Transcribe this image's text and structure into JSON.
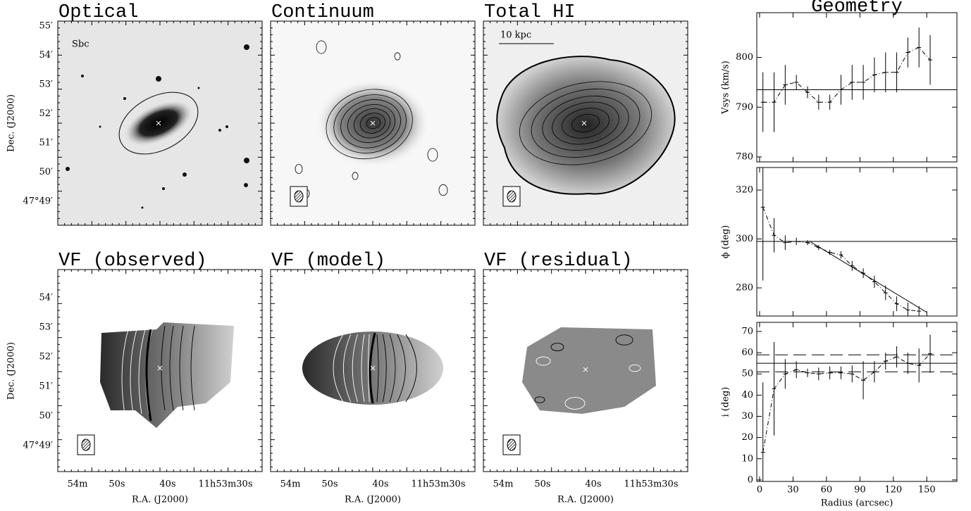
{
  "image_panels": [
    {
      "title": "Optical",
      "note": "Sbc"
    },
    {
      "title": "Continuum"
    },
    {
      "title": "Total HI",
      "scale_bar": "10 kpc"
    },
    {
      "title": "VF (observed)"
    },
    {
      "title": "VF (model)"
    },
    {
      "title": "VF (residual)"
    }
  ],
  "dec_axis": {
    "label": "Dec. (J2000)",
    "top_ticks": [
      "55′",
      "54′",
      "53′",
      "52′",
      "51′",
      "50′",
      "47°49′"
    ],
    "bottom_ticks": [
      "54′",
      "53′",
      "52′",
      "51′",
      "50′",
      "47°49′"
    ]
  },
  "ra_axis": {
    "label": "R.A. (J2000)",
    "ticks": [
      "54m",
      "50s",
      "40s",
      "11h53m30s"
    ]
  },
  "chart_data": [
    {
      "type": "errorbar",
      "title": "Geometry",
      "ylabel": "Vsys (km/s)",
      "xlim": [
        -2.5,
        177
      ],
      "xticks": [
        0,
        30,
        60,
        90,
        120,
        150
      ],
      "ylim": [
        779,
        809
      ],
      "yticks": [
        780,
        790,
        800
      ],
      "series": [
        {
          "color": "#000000",
          "x": [
            3,
            13,
            23,
            33,
            43,
            53,
            63,
            73,
            83,
            93,
            103,
            113,
            123,
            133,
            143,
            153
          ],
          "values": [
            791,
            791,
            794.5,
            795,
            793,
            791,
            791,
            793.5,
            795,
            795,
            796.5,
            797,
            797,
            801,
            802,
            799.5
          ],
          "errors": [
            6,
            6,
            4,
            1.5,
            1.2,
            1.5,
            1.5,
            3,
            3.5,
            3.5,
            3.5,
            4,
            4,
            3,
            4,
            5
          ]
        }
      ],
      "reference_lines": [
        {
          "value": 793.5,
          "dash": "solid"
        }
      ]
    },
    {
      "type": "errorbar",
      "ylabel": "ϕ (deg)",
      "xlim": [
        -2.5,
        177
      ],
      "xticks": [
        0,
        30,
        60,
        90,
        120,
        150
      ],
      "ylim": [
        268.5,
        329.2
      ],
      "yticks": [
        280,
        300,
        320
      ],
      "series": [
        {
          "color": "#000000",
          "x": [
            3,
            13,
            23,
            33,
            43,
            53,
            63,
            73,
            83,
            93,
            103,
            113,
            123,
            133,
            143
          ],
          "values": [
            313,
            301.5,
            298.5,
            299,
            298.5,
            296.5,
            294.5,
            293.5,
            289,
            286,
            282.5,
            278,
            273.5,
            271,
            270.5
          ],
          "errors": [
            30,
            7,
            3,
            1.5,
            1,
            1,
            1,
            1.5,
            2,
            2,
            2.5,
            3,
            3,
            3,
            2
          ]
        },
        {
          "color": "#000000",
          "x": [
            0,
            45,
            150
          ],
          "values": [
            299,
            299,
            270
          ]
        }
      ],
      "reference_lines": [
        {
          "value": 299,
          "dash": "solid"
        }
      ]
    },
    {
      "type": "errorbar",
      "ylabel": "i (deg)",
      "xlabel": "Radius (arcsec)",
      "xtick_labels": true,
      "xlim": [
        -2.5,
        177
      ],
      "xticks": [
        0,
        30,
        60,
        90,
        120,
        150
      ],
      "ylim": [
        -0.7,
        74.3
      ],
      "yticks": [
        0,
        10,
        20,
        30,
        40,
        50,
        60,
        70
      ],
      "series": [
        {
          "color": "#000000",
          "x": [
            3,
            13,
            23,
            33,
            43,
            53,
            63,
            73,
            83,
            93,
            103,
            113,
            123,
            133,
            143,
            153
          ],
          "values": [
            13,
            43,
            50,
            52,
            50.5,
            50,
            50.5,
            50.5,
            50,
            47,
            51,
            56,
            58,
            55,
            54,
            59.5
          ],
          "errors": [
            33,
            22,
            7,
            4,
            2,
            3,
            3,
            3,
            4,
            9,
            5,
            4,
            5,
            5,
            8,
            9
          ]
        }
      ],
      "reference_lines": [
        {
          "value": 55,
          "dash": "solid"
        },
        {
          "value": 59,
          "dash": "long"
        },
        {
          "value": 51,
          "dash": "long"
        }
      ]
    }
  ]
}
